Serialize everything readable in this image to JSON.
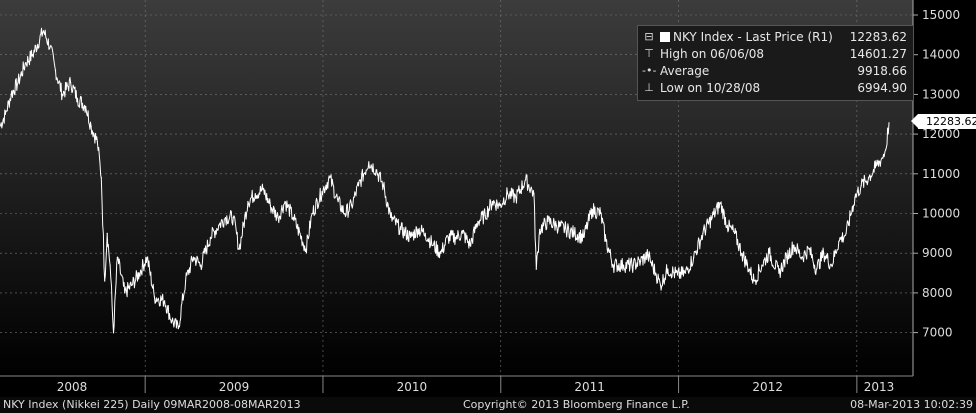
{
  "chart_data": {
    "type": "line",
    "ylim": [
      6000,
      15200
    ],
    "y_ticks": [
      "15000",
      "14000",
      "13000",
      "12000",
      "11000",
      "10000",
      "9000",
      "8000",
      "7000"
    ],
    "x_labels": [
      "2008",
      "2009",
      "2010",
      "2011",
      "2012",
      "2013"
    ],
    "grid": true,
    "legend_placement": "top-right",
    "series": [
      {
        "name": "NKY Index - Last Price (R1)",
        "points": [
          [
            "2008-03-09",
            12200
          ],
          [
            "2008-03-20",
            12500
          ],
          [
            "2008-04-01",
            13000
          ],
          [
            "2008-04-15",
            13300
          ],
          [
            "2008-05-01",
            13800
          ],
          [
            "2008-05-15",
            14000
          ],
          [
            "2008-06-06",
            14601.27
          ],
          [
            "2008-06-20",
            14200
          ],
          [
            "2008-07-01",
            13600
          ],
          [
            "2008-07-15",
            13000
          ],
          [
            "2008-08-01",
            13300
          ],
          [
            "2008-08-15",
            12900
          ],
          [
            "2008-09-01",
            12700
          ],
          [
            "2008-09-12",
            12200
          ],
          [
            "2008-09-25",
            11800
          ],
          [
            "2008-10-03",
            10900
          ],
          [
            "2008-10-10",
            8300
          ],
          [
            "2008-10-15",
            9500
          ],
          [
            "2008-10-21",
            8700
          ],
          [
            "2008-10-28",
            6994.9
          ],
          [
            "2008-11-05",
            8900
          ],
          [
            "2008-11-20",
            8000
          ],
          [
            "2008-12-05",
            8200
          ],
          [
            "2008-12-20",
            8500
          ],
          [
            "2009-01-05",
            8900
          ],
          [
            "2009-01-20",
            7900
          ],
          [
            "2009-02-10",
            7800
          ],
          [
            "2009-02-25",
            7300
          ],
          [
            "2009-03-10",
            7100
          ],
          [
            "2009-03-25",
            8300
          ],
          [
            "2009-04-10",
            8900
          ],
          [
            "2009-04-25",
            8700
          ],
          [
            "2009-05-15",
            9400
          ],
          [
            "2009-06-01",
            9700
          ],
          [
            "2009-06-15",
            9900
          ],
          [
            "2009-07-01",
            9900
          ],
          [
            "2009-07-13",
            9100
          ],
          [
            "2009-07-31",
            10300
          ],
          [
            "2009-08-15",
            10500
          ],
          [
            "2009-08-31",
            10600
          ],
          [
            "2009-09-15",
            10200
          ],
          [
            "2009-10-01",
            9900
          ],
          [
            "2009-10-15",
            10300
          ],
          [
            "2009-11-01",
            9900
          ],
          [
            "2009-11-27",
            9100
          ],
          [
            "2009-12-10",
            10000
          ],
          [
            "2009-12-30",
            10550
          ],
          [
            "2010-01-15",
            10900
          ],
          [
            "2010-02-01",
            10300
          ],
          [
            "2010-02-15",
            10000
          ],
          [
            "2010-03-01",
            10200
          ],
          [
            "2010-03-15",
            10700
          ],
          [
            "2010-04-05",
            11300
          ],
          [
            "2010-04-20",
            11100
          ],
          [
            "2010-05-05",
            10700
          ],
          [
            "2010-05-20",
            9900
          ],
          [
            "2010-06-10",
            9600
          ],
          [
            "2010-06-30",
            9400
          ],
          [
            "2010-07-15",
            9600
          ],
          [
            "2010-07-30",
            9500
          ],
          [
            "2010-08-15",
            9200
          ],
          [
            "2010-08-31",
            9000
          ],
          [
            "2010-09-15",
            9400
          ],
          [
            "2010-09-30",
            9400
          ],
          [
            "2010-10-15",
            9500
          ],
          [
            "2010-10-30",
            9200
          ],
          [
            "2010-11-15",
            9800
          ],
          [
            "2010-11-30",
            9950
          ],
          [
            "2010-12-15",
            10300
          ],
          [
            "2010-12-30",
            10200
          ],
          [
            "2011-01-15",
            10500
          ],
          [
            "2011-02-01",
            10400
          ],
          [
            "2011-02-21",
            10850
          ],
          [
            "2011-03-10",
            10500
          ],
          [
            "2011-03-15",
            8600
          ],
          [
            "2011-03-22",
            9600
          ],
          [
            "2011-04-08",
            9800
          ],
          [
            "2011-04-25",
            9700
          ],
          [
            "2011-05-15",
            9600
          ],
          [
            "2011-06-01",
            9500
          ],
          [
            "2011-06-20",
            9400
          ],
          [
            "2011-07-08",
            10100
          ],
          [
            "2011-07-25",
            10000
          ],
          [
            "2011-08-05",
            9300
          ],
          [
            "2011-08-20",
            8700
          ],
          [
            "2011-09-10",
            8700
          ],
          [
            "2011-09-30",
            8700
          ],
          [
            "2011-10-15",
            8800
          ],
          [
            "2011-10-30",
            8950
          ],
          [
            "2011-11-15",
            8500
          ],
          [
            "2011-11-25",
            8200
          ],
          [
            "2011-12-10",
            8600
          ],
          [
            "2011-12-30",
            8450
          ],
          [
            "2012-01-15",
            8500
          ],
          [
            "2012-02-01",
            8900
          ],
          [
            "2012-02-20",
            9500
          ],
          [
            "2012-03-10",
            9900
          ],
          [
            "2012-03-27",
            10250
          ],
          [
            "2012-04-10",
            9700
          ],
          [
            "2012-04-25",
            9500
          ],
          [
            "2012-05-10",
            9000
          ],
          [
            "2012-05-25",
            8600
          ],
          [
            "2012-06-04",
            8300
          ],
          [
            "2012-06-20",
            8700
          ],
          [
            "2012-07-05",
            9000
          ],
          [
            "2012-07-25",
            8500
          ],
          [
            "2012-08-10",
            8900
          ],
          [
            "2012-08-25",
            9200
          ],
          [
            "2012-09-10",
            8900
          ],
          [
            "2012-09-25",
            9100
          ],
          [
            "2012-10-10",
            8600
          ],
          [
            "2012-10-25",
            9000
          ],
          [
            "2012-11-10",
            8700
          ],
          [
            "2012-11-25",
            9300
          ],
          [
            "2012-12-10",
            9500
          ],
          [
            "2012-12-28",
            10400
          ],
          [
            "2013-01-10",
            10700
          ],
          [
            "2013-01-25",
            10900
          ],
          [
            "2013-02-08",
            11150
          ],
          [
            "2013-02-22",
            11400
          ],
          [
            "2013-03-01",
            11600
          ],
          [
            "2013-03-08",
            12283.62
          ]
        ]
      }
    ]
  },
  "legend": {
    "title": "NKY Index - Last Price (R1)",
    "last_value": "12283.62",
    "high_label": "High on 06/06/08",
    "high_value": "14601.27",
    "avg_label": "Average",
    "avg_value": "9918.66",
    "low_label": "Low on 10/28/08",
    "low_value": "6994.90"
  },
  "last_tag": "12283.62",
  "footer": {
    "left": "NKY Index (Nikkei 225)  Daily 09MAR2008-08MAR2013",
    "center": "Copyright© 2013 Bloomberg Finance L.P.",
    "right": "08-Mar-2013 10:02:39"
  },
  "colors": {
    "line": "#ffffff",
    "background_top": "#3a3a3a",
    "background_bottom": "#000000",
    "grid": "#666666"
  }
}
